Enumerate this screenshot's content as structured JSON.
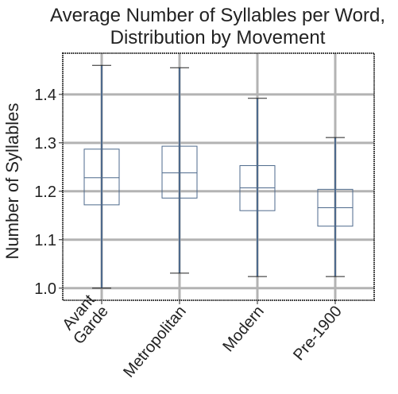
{
  "chart_data": {
    "type": "box",
    "title": [
      "Average Number of Syllables per Word,",
      "Distribution by Movement"
    ],
    "xlabel": "",
    "ylabel": "Number of Syllables",
    "ylim": [
      0.975,
      1.485
    ],
    "yticks": [
      1.0,
      1.1,
      1.2,
      1.3,
      1.4
    ],
    "ytick_labels": [
      "1.0",
      "1.1",
      "1.2",
      "1.3",
      "1.4"
    ],
    "grid": true,
    "categories": [
      {
        "label_lines": [
          "Avant",
          "Garde"
        ],
        "min": 1.0,
        "q1": 1.172,
        "median": 1.228,
        "q3": 1.287,
        "max": 1.46
      },
      {
        "label_lines": [
          "Metropolitan"
        ],
        "min": 1.031,
        "q1": 1.186,
        "median": 1.238,
        "q3": 1.293,
        "max": 1.455
      },
      {
        "label_lines": [
          "Modern"
        ],
        "min": 1.024,
        "q1": 1.16,
        "median": 1.207,
        "q3": 1.253,
        "max": 1.392
      },
      {
        "label_lines": [
          "Pre-1900"
        ],
        "min": 1.024,
        "q1": 1.128,
        "median": 1.166,
        "q3": 1.204,
        "max": 1.311
      }
    ],
    "colors": {
      "box": "#4e6a8c",
      "whisker": "#4e6a8c",
      "grid": "#b3b3b3",
      "frame": "#222222"
    }
  }
}
